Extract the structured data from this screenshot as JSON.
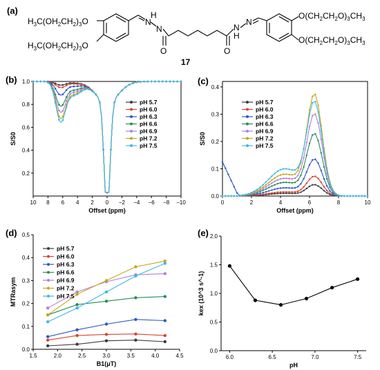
{
  "panels": {
    "a": "(a)",
    "b": "(b)",
    "c": "(c)",
    "d": "(d)",
    "e": "(e)"
  },
  "molecule": {
    "left_top": "H3C(OH2CH2)3O",
    "left_bottom": "H3C(OH2CH2)3O",
    "right_top": "O(CH2CH2O)3CH3",
    "right_bottom": "O(CH2CH2O)3CH3",
    "h_left": "H",
    "n_left": "N",
    "n_right": "N",
    "h_right": "H",
    "o_left": "O",
    "o_right": "O",
    "compound_number": "17"
  },
  "colors": {
    "pH 5.7": "#3a3a3a",
    "pH 6.0": "#d8452f",
    "pH 6.3": "#2d56c6",
    "pH 6.6": "#2a8a5a",
    "pH 6.9": "#b07fd8",
    "pH 7.2": "#c9a51a",
    "pH 7.5": "#3cb8e6"
  },
  "chart_data": [
    {
      "panel": "b",
      "type": "line",
      "xlabel": "Offset (ppm)",
      "ylabel": "S/S0",
      "xlim": [
        10,
        -10
      ],
      "ylim": [
        0,
        1.0
      ],
      "xticks": [
        10,
        8,
        6,
        4,
        2,
        0,
        -2,
        -4,
        -6,
        -8,
        -10
      ],
      "yticks": [
        0.2,
        0.4,
        0.6,
        0.8,
        1.0
      ],
      "xtick_labels": [
        "10",
        "8",
        "6",
        "4",
        "2",
        "0",
        "−2",
        "−4",
        "−6",
        "−8",
        "−10"
      ],
      "ytick_labels": [
        "0.2",
        "0.4",
        "0.6",
        "0.8",
        "1.0"
      ],
      "legend": [
        "pH 5.7",
        "pH 6.0",
        "pH 6.3",
        "pH 6.6",
        "pH 6.9",
        "pH 7.2",
        "pH 7.5"
      ],
      "series_params": [
        {
          "name": "pH 5.7",
          "amide_depth": 0.03
        },
        {
          "name": "pH 6.0",
          "amide_depth": 0.05
        },
        {
          "name": "pH 6.3",
          "amide_depth": 0.11
        },
        {
          "name": "pH 6.6",
          "amide_depth": 0.2
        },
        {
          "name": "pH 6.9",
          "amide_depth": 0.25
        },
        {
          "name": "pH 7.2",
          "amide_depth": 0.3
        },
        {
          "name": "pH 7.5",
          "amide_depth": 0.33
        }
      ]
    },
    {
      "panel": "c",
      "type": "line",
      "xlabel": "Offset (ppm)",
      "ylabel": "S/S0",
      "xlim": [
        0,
        10
      ],
      "ylim": [
        0,
        0.42
      ],
      "xticks": [
        0,
        2,
        4,
        6,
        8,
        10
      ],
      "yticks": [
        0.0,
        0.1,
        0.2,
        0.3,
        0.4
      ],
      "xtick_labels": [
        "0",
        "2",
        "4",
        "6",
        "8",
        "10"
      ],
      "ytick_labels": [
        "0.0",
        "0.1",
        "0.2",
        "0.3",
        "0.4"
      ],
      "legend": [
        "pH 5.7",
        "pH 6.0",
        "pH 6.3",
        "pH 6.6",
        "pH 6.9",
        "pH 7.2",
        "pH 7.5"
      ],
      "series_params": [
        {
          "name": "pH 5.7",
          "peak": 0.04,
          "base": 0.01
        },
        {
          "name": "pH 6.0",
          "peak": 0.07,
          "base": 0.015
        },
        {
          "name": "pH 6.3",
          "peak": 0.13,
          "base": 0.03
        },
        {
          "name": "pH 6.6",
          "peak": 0.22,
          "base": 0.05
        },
        {
          "name": "pH 6.9",
          "peak": 0.29,
          "base": 0.065
        },
        {
          "name": "pH 7.2",
          "peak": 0.36,
          "base": 0.08
        },
        {
          "name": "pH 7.5",
          "peak": 0.33,
          "base": 0.1
        }
      ]
    },
    {
      "panel": "d",
      "type": "line",
      "xlabel": "B1(μT)",
      "ylabel": "MTRasym",
      "xlim": [
        1.5,
        4.5
      ],
      "ylim": [
        0,
        0.5
      ],
      "xticks": [
        1.5,
        2.0,
        2.5,
        3.0,
        3.5,
        4.0,
        4.5
      ],
      "yticks": [
        0.0,
        0.1,
        0.2,
        0.3,
        0.4,
        0.5
      ],
      "xtick_labels": [
        "1.5",
        "2.0",
        "2.5",
        "3.0",
        "3.5",
        "4.0",
        "4.5"
      ],
      "ytick_labels": [
        "0.0",
        "0.1",
        "0.2",
        "0.3",
        "0.4",
        "0.5"
      ],
      "x": [
        1.8,
        2.4,
        3.0,
        3.6,
        4.2
      ],
      "series": [
        {
          "name": "pH 5.7",
          "values": [
            0.015,
            0.022,
            0.037,
            0.04,
            0.033
          ]
        },
        {
          "name": "pH 6.0",
          "values": [
            0.04,
            0.06,
            0.065,
            0.067,
            0.06
          ]
        },
        {
          "name": "pH 6.3",
          "values": [
            0.055,
            0.085,
            0.11,
            0.13,
            0.125
          ]
        },
        {
          "name": "pH 6.6",
          "values": [
            0.15,
            0.195,
            0.21,
            0.225,
            0.23
          ]
        },
        {
          "name": "pH 6.9",
          "values": [
            0.18,
            0.25,
            0.295,
            0.325,
            0.33
          ]
        },
        {
          "name": "pH 7.2",
          "values": [
            0.15,
            0.24,
            0.3,
            0.36,
            0.385
          ]
        },
        {
          "name": "pH 7.5",
          "values": [
            0.12,
            0.18,
            0.25,
            0.32,
            0.375
          ]
        }
      ]
    },
    {
      "panel": "e",
      "type": "line",
      "xlabel": "pH",
      "ylabel": "kex (10^3 s^-1)",
      "xlim": [
        5.9,
        7.6
      ],
      "ylim": [
        0,
        2.0
      ],
      "xticks": [
        6.0,
        6.5,
        7.0,
        7.5
      ],
      "yticks": [
        0.0,
        0.5,
        1.0,
        1.5,
        2.0
      ],
      "xtick_labels": [
        "6.0",
        "6.5",
        "7.0",
        "7.5"
      ],
      "ytick_labels": [
        "0.0",
        "0.5",
        "1.0",
        "1.5",
        "2.0"
      ],
      "x": [
        6.0,
        6.3,
        6.6,
        6.9,
        7.2,
        7.5
      ],
      "series": [
        {
          "values": [
            1.48,
            0.88,
            0.8,
            0.91,
            1.1,
            1.25
          ]
        }
      ]
    }
  ]
}
